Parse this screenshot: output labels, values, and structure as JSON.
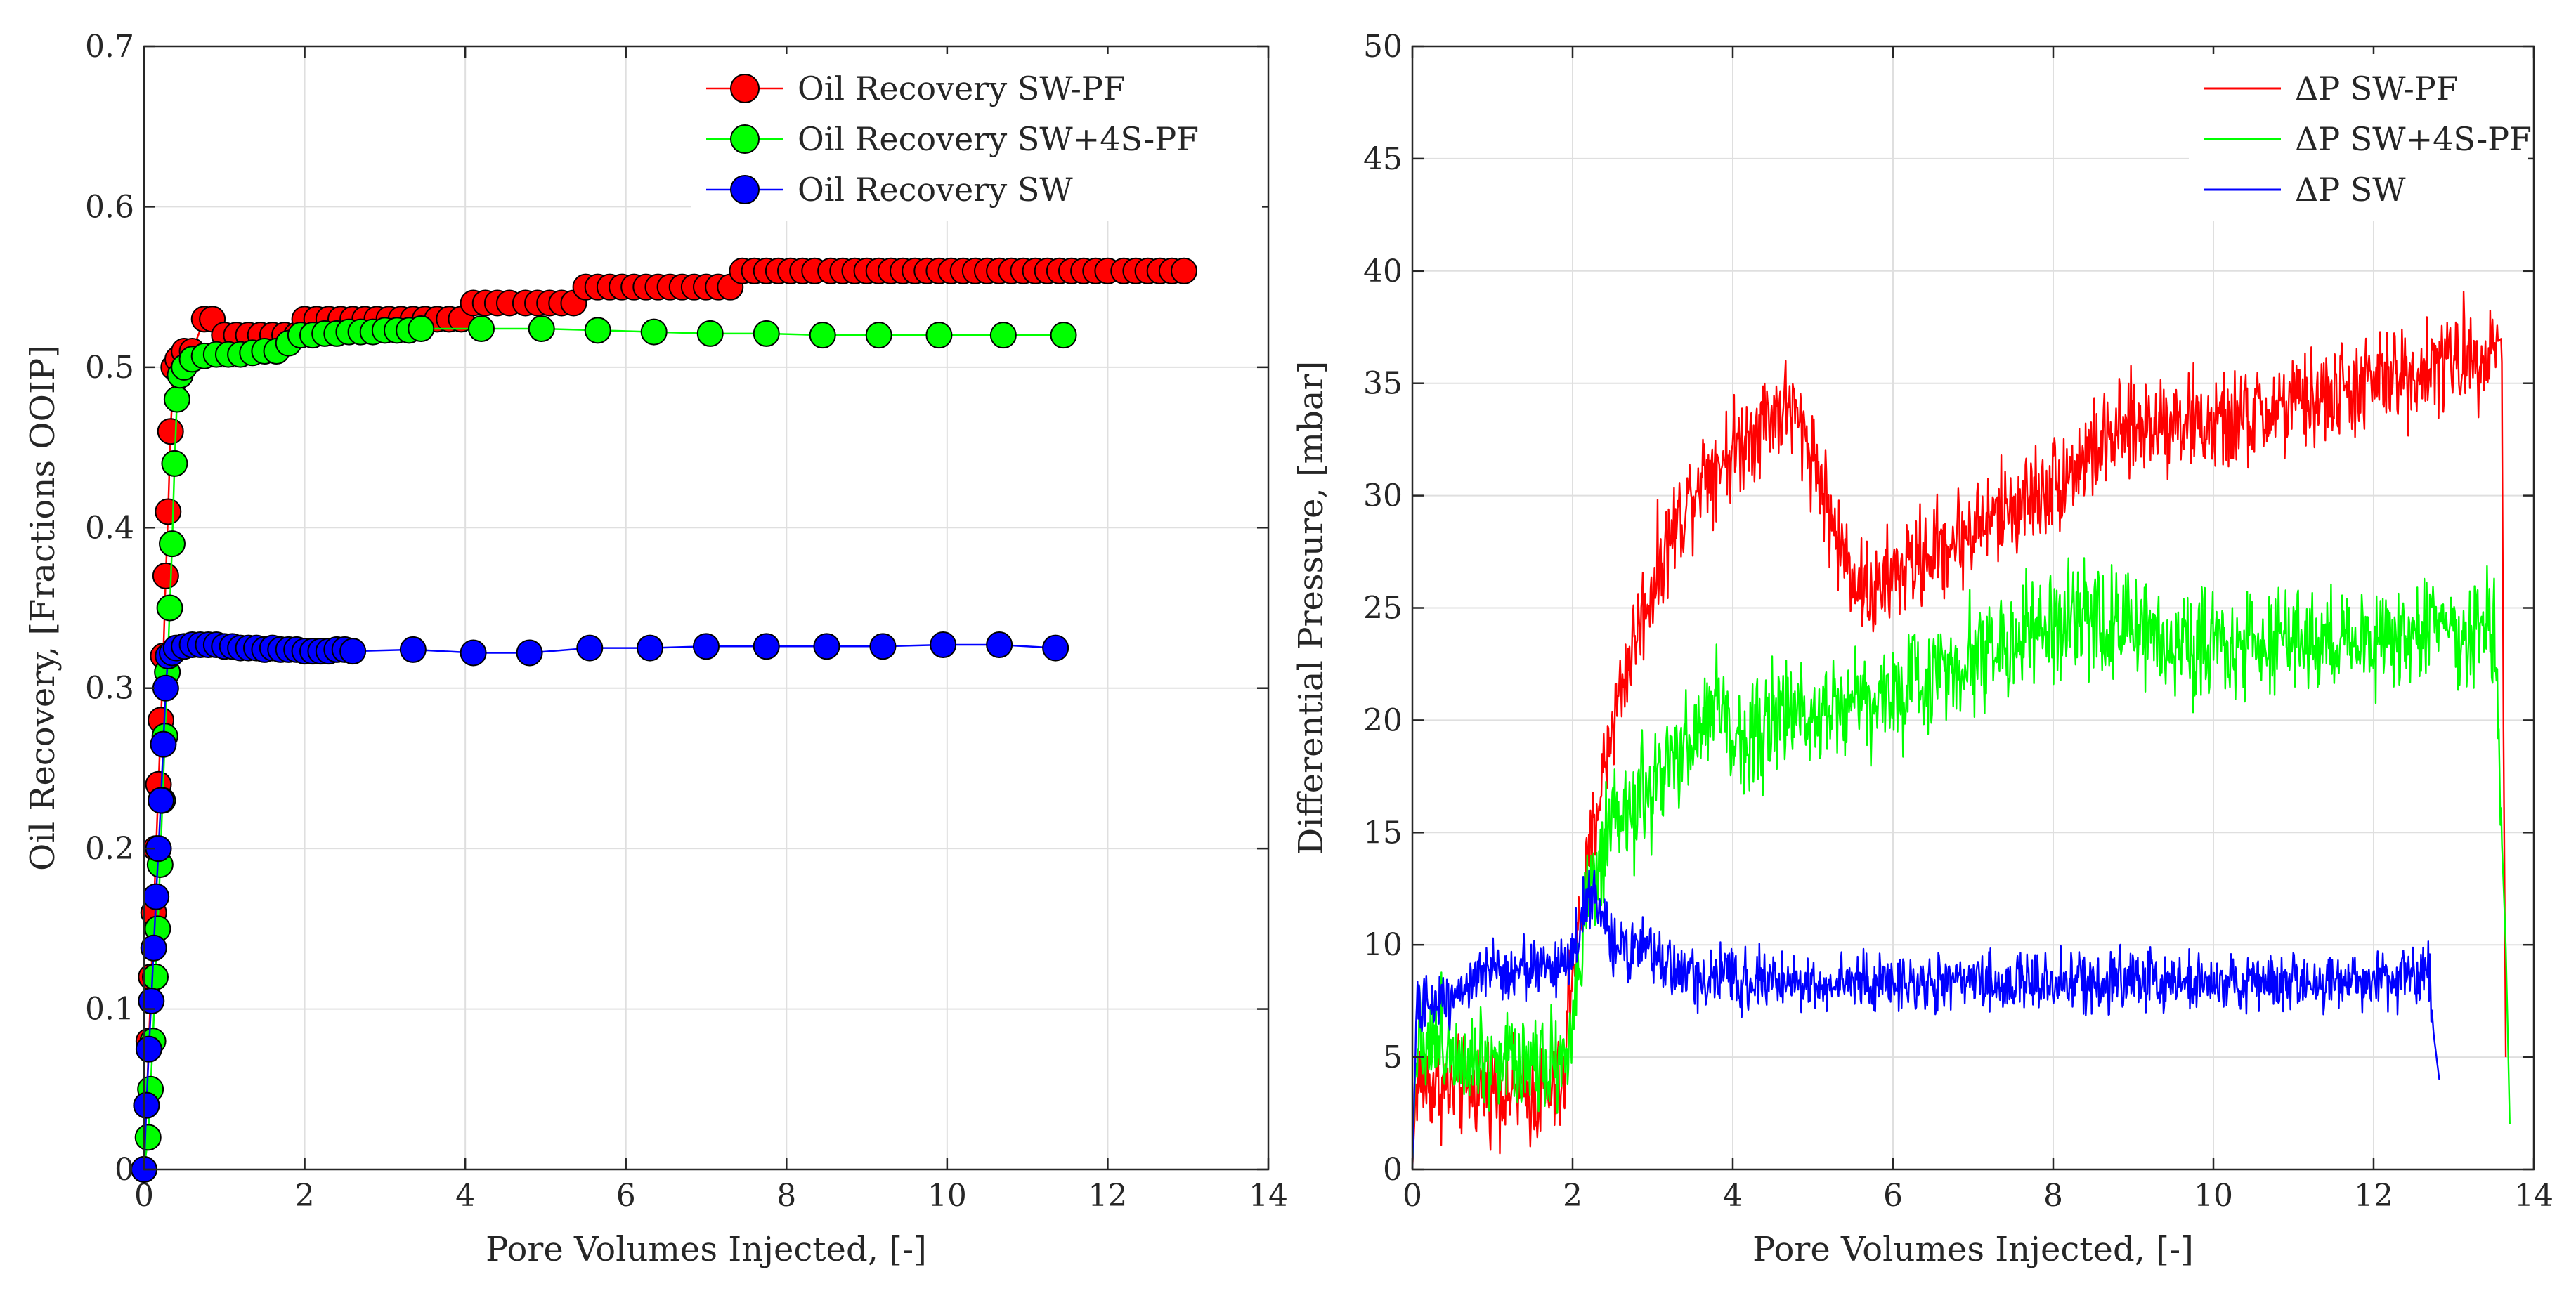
{
  "chart_data": [
    {
      "type": "scatter",
      "title": "",
      "xlabel": "Pore Volumes Injected, [-]",
      "ylabel": "Oil Recovery, [Fractions OOIP]",
      "xlim": [
        0,
        14
      ],
      "ylim": [
        0,
        0.7
      ],
      "xticks": [
        "0",
        "2",
        "4",
        "6",
        "8",
        "10",
        "12",
        "14"
      ],
      "yticks": [
        "0",
        "0.1",
        "0.2",
        "0.3",
        "0.4",
        "0.5",
        "0.6",
        "0.7"
      ],
      "grid": true,
      "legend_position": "top-right",
      "series": [
        {
          "name": "Oil Recovery SW-PF",
          "color": "#ff0000",
          "x": [
            0.0,
            0.03,
            0.06,
            0.09,
            0.12,
            0.15,
            0.18,
            0.21,
            0.24,
            0.27,
            0.3,
            0.33,
            0.37,
            0.42,
            0.5,
            0.6,
            0.75,
            0.85,
            1.0,
            1.15,
            1.3,
            1.45,
            1.6,
            1.75,
            1.9,
            2.0,
            2.15,
            2.3,
            2.45,
            2.6,
            2.75,
            2.9,
            3.05,
            3.2,
            3.35,
            3.5,
            3.65,
            3.8,
            3.95,
            4.1,
            4.25,
            4.4,
            4.55,
            4.75,
            4.9,
            5.05,
            5.2,
            5.35,
            5.5,
            5.65,
            5.8,
            5.95,
            6.1,
            6.25,
            6.4,
            6.55,
            6.7,
            6.85,
            7.0,
            7.15,
            7.3,
            7.45,
            7.6,
            7.75,
            7.9,
            8.05,
            8.2,
            8.35,
            8.55,
            8.7,
            8.85,
            9.0,
            9.15,
            9.3,
            9.45,
            9.6,
            9.75,
            9.9,
            10.05,
            10.2,
            10.35,
            10.5,
            10.65,
            10.8,
            10.95,
            11.1,
            11.25,
            11.4,
            11.55,
            11.7,
            11.85,
            12.0,
            12.2,
            12.35,
            12.5,
            12.65,
            12.8,
            12.95
          ],
          "y": [
            0.0,
            0.04,
            0.08,
            0.12,
            0.16,
            0.2,
            0.24,
            0.28,
            0.32,
            0.37,
            0.41,
            0.46,
            0.5,
            0.505,
            0.51,
            0.51,
            0.53,
            0.53,
            0.52,
            0.52,
            0.52,
            0.52,
            0.52,
            0.52,
            0.52,
            0.53,
            0.53,
            0.53,
            0.53,
            0.53,
            0.53,
            0.53,
            0.53,
            0.53,
            0.53,
            0.53,
            0.53,
            0.53,
            0.53,
            0.54,
            0.54,
            0.54,
            0.54,
            0.54,
            0.54,
            0.54,
            0.54,
            0.54,
            0.55,
            0.55,
            0.55,
            0.55,
            0.55,
            0.55,
            0.55,
            0.55,
            0.55,
            0.55,
            0.55,
            0.55,
            0.55,
            0.56,
            0.56,
            0.56,
            0.56,
            0.56,
            0.56,
            0.56,
            0.56,
            0.56,
            0.56,
            0.56,
            0.56,
            0.56,
            0.56,
            0.56,
            0.56,
            0.56,
            0.56,
            0.56,
            0.56,
            0.56,
            0.56,
            0.56,
            0.56,
            0.56,
            0.56,
            0.56,
            0.56,
            0.56,
            0.56,
            0.56,
            0.56,
            0.56,
            0.56,
            0.56,
            0.56,
            0.56
          ]
        },
        {
          "name": "Oil Recovery SW+4S-PF",
          "color": "#00ff00",
          "x": [
            0.0,
            0.05,
            0.08,
            0.11,
            0.14,
            0.17,
            0.2,
            0.23,
            0.26,
            0.29,
            0.32,
            0.35,
            0.38,
            0.41,
            0.45,
            0.5,
            0.6,
            0.75,
            0.9,
            1.05,
            1.2,
            1.35,
            1.5,
            1.65,
            1.8,
            1.95,
            2.1,
            2.25,
            2.4,
            2.55,
            2.7,
            2.85,
            3.0,
            3.15,
            3.3,
            3.45,
            4.2,
            4.95,
            5.65,
            6.35,
            7.05,
            7.75,
            8.45,
            9.15,
            9.9,
            10.7,
            11.45
          ],
          "y": [
            0.0,
            0.02,
            0.05,
            0.08,
            0.12,
            0.15,
            0.19,
            0.23,
            0.27,
            0.31,
            0.35,
            0.39,
            0.44,
            0.48,
            0.495,
            0.5,
            0.505,
            0.507,
            0.508,
            0.508,
            0.508,
            0.509,
            0.51,
            0.51,
            0.515,
            0.52,
            0.52,
            0.521,
            0.521,
            0.522,
            0.522,
            0.522,
            0.523,
            0.523,
            0.523,
            0.524,
            0.524,
            0.524,
            0.523,
            0.522,
            0.521,
            0.521,
            0.52,
            0.52,
            0.52,
            0.52,
            0.52
          ]
        },
        {
          "name": "Oil Recovery SW",
          "color": "#0000ff",
          "x": [
            0.0,
            0.03,
            0.06,
            0.09,
            0.12,
            0.15,
            0.18,
            0.21,
            0.24,
            0.27,
            0.3,
            0.35,
            0.4,
            0.5,
            0.6,
            0.7,
            0.8,
            0.9,
            1.0,
            1.1,
            1.2,
            1.3,
            1.4,
            1.5,
            1.6,
            1.7,
            1.8,
            1.9,
            2.0,
            2.1,
            2.2,
            2.3,
            2.4,
            2.5,
            2.6,
            3.35,
            4.1,
            4.8,
            5.55,
            6.3,
            7.0,
            7.75,
            8.5,
            9.2,
            9.95,
            10.65,
            11.35
          ],
          "y": [
            0.0,
            0.04,
            0.075,
            0.105,
            0.138,
            0.17,
            0.2,
            0.23,
            0.265,
            0.3,
            0.32,
            0.322,
            0.325,
            0.326,
            0.327,
            0.327,
            0.327,
            0.327,
            0.326,
            0.326,
            0.325,
            0.325,
            0.325,
            0.324,
            0.325,
            0.324,
            0.324,
            0.324,
            0.323,
            0.323,
            0.323,
            0.323,
            0.324,
            0.324,
            0.323,
            0.324,
            0.322,
            0.322,
            0.325,
            0.325,
            0.326,
            0.326,
            0.326,
            0.326,
            0.327,
            0.327,
            0.325
          ]
        }
      ]
    },
    {
      "type": "line",
      "title": "",
      "xlabel": "Pore Volumes Injected, [-]",
      "ylabel": "Differential Pressure, [mbar]",
      "xlim": [
        0,
        14
      ],
      "ylim": [
        0,
        50
      ],
      "xticks": [
        "0",
        "2",
        "4",
        "6",
        "8",
        "10",
        "12",
        "14"
      ],
      "yticks": [
        "0",
        "5",
        "10",
        "15",
        "20",
        "25",
        "30",
        "35",
        "40",
        "45",
        "50"
      ],
      "grid": true,
      "legend_position": "top-right",
      "series": [
        {
          "name": "ΔP SW-PF",
          "color": "#ff0000",
          "noise": 2.2,
          "x_end": 13.65,
          "x": [
            0,
            0.05,
            0.5,
            1.0,
            1.5,
            1.9,
            1.95,
            2.1,
            2.3,
            2.5,
            2.8,
            3.2,
            3.6,
            4.0,
            4.4,
            4.7,
            5.0,
            5.3,
            5.6,
            5.8,
            6.0,
            6.5,
            7.0,
            7.5,
            8.0,
            8.5,
            9.0,
            9.5,
            10.0,
            10.5,
            11.0,
            11.5,
            12.0,
            12.5,
            13.0,
            13.4,
            13.6,
            13.62,
            13.65
          ],
          "y": [
            0,
            4,
            3.5,
            3.8,
            3.2,
            3.5,
            8,
            11,
            16,
            20,
            24,
            28,
            31,
            32,
            33.5,
            34,
            32,
            28,
            26,
            25.5,
            26.5,
            27.5,
            28.5,
            29.5,
            30.5,
            32,
            33,
            33.5,
            33,
            33.5,
            34,
            34.5,
            35,
            35.5,
            36,
            36.5,
            37,
            20,
            5
          ]
        },
        {
          "name": "ΔP SW+4S-PF",
          "color": "#00ff00",
          "noise": 2.4,
          "x_end": 13.7,
          "x": [
            0,
            0.05,
            0.5,
            1.0,
            1.5,
            1.95,
            2.0,
            2.2,
            2.5,
            3.0,
            3.5,
            3.8,
            4.0,
            4.5,
            5.0,
            5.5,
            6.0,
            6.5,
            7.0,
            7.5,
            8.0,
            8.5,
            9.0,
            9.5,
            10.0,
            10.5,
            11.0,
            11.5,
            12.0,
            12.5,
            13.0,
            13.5,
            13.65,
            13.7
          ],
          "y": [
            0,
            6,
            5.5,
            5,
            5,
            5,
            7,
            12,
            15,
            17,
            19,
            21,
            19,
            20,
            20.5,
            21,
            21,
            22,
            23,
            23.5,
            24,
            24.5,
            24,
            23.5,
            23.5,
            23.5,
            23.5,
            23.5,
            23.5,
            24,
            24,
            24,
            10,
            2
          ]
        },
        {
          "name": "ΔP SW",
          "color": "#0000ff",
          "noise": 1.3,
          "x_end": 12.82,
          "x": [
            0,
            0.05,
            0.3,
            0.8,
            1.3,
            1.8,
            2.0,
            2.2,
            2.5,
            3.0,
            3.5,
            4.0,
            5.0,
            6.0,
            7.0,
            8.0,
            9.0,
            10.0,
            11.0,
            12.0,
            12.6,
            12.7,
            12.75,
            12.82
          ],
          "y": [
            0,
            7,
            7.5,
            8.5,
            9,
            9,
            9.5,
            12.5,
            10,
            9.5,
            8.5,
            8.5,
            8.3,
            8.3,
            8.3,
            8.3,
            8.5,
            8.3,
            8.3,
            8.5,
            8.5,
            8.5,
            6,
            4
          ]
        }
      ]
    }
  ]
}
